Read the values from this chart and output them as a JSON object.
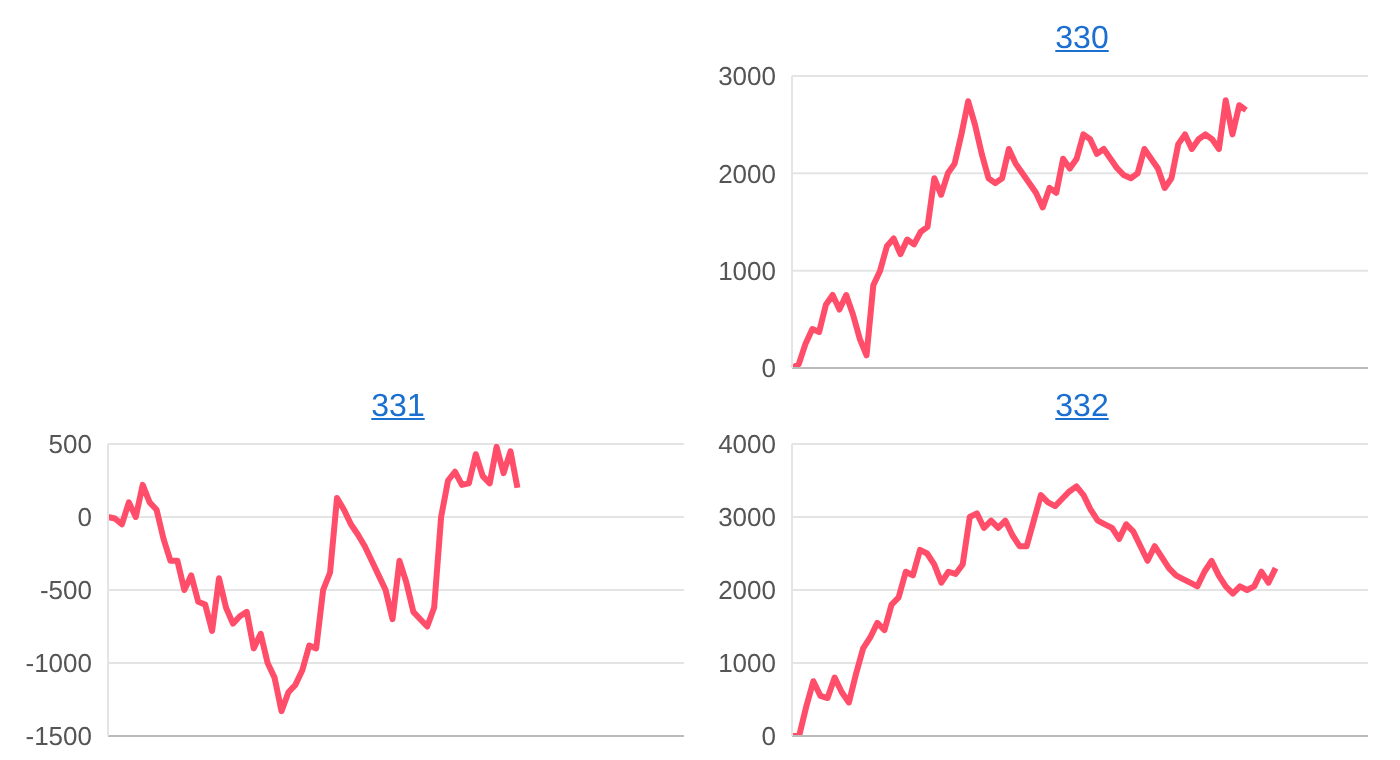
{
  "chart_data": [
    {
      "type": "line",
      "title": "330",
      "categories": [
        null,
        null,
        null,
        null,
        null,
        null,
        null,
        null,
        null,
        null,
        null,
        null,
        null,
        null,
        null,
        null,
        null,
        null,
        null,
        null,
        null,
        null,
        null,
        null,
        null,
        null,
        null,
        null,
        null,
        null,
        null,
        null,
        null,
        null,
        null,
        null,
        null,
        null,
        null,
        null,
        null,
        null,
        null,
        null,
        null,
        null,
        null,
        null,
        null,
        null,
        null,
        null,
        null,
        null,
        null,
        null,
        null,
        null,
        null,
        null,
        null,
        null,
        null,
        null,
        null,
        null,
        null,
        null,
        null,
        null,
        null,
        null,
        null,
        null,
        null,
        null,
        null,
        null,
        null,
        null,
        null,
        null,
        null,
        null,
        null,
        null
      ],
      "series": [
        {
          "color": "#ff4d6a",
          "values": [
            0,
            40,
            250,
            400,
            370,
            650,
            750,
            600,
            750,
            550,
            300,
            130,
            850,
            1000,
            1250,
            1330,
            1170,
            1320,
            1270,
            1400,
            1450,
            1950,
            1780,
            2000,
            2100,
            2400,
            2740,
            2500,
            2200,
            1950,
            1900,
            1950,
            2250,
            2100,
            2000,
            1900,
            1800,
            1650,
            1850,
            1800,
            2150,
            2050,
            2150,
            2400,
            2350,
            2200,
            2250,
            2150,
            2050,
            1980,
            1950,
            2000,
            2250,
            2150,
            2050,
            1850,
            1950,
            2300,
            2400,
            2250,
            2350,
            2400,
            2350,
            2250,
            2750,
            2400,
            2700,
            2650,
            null,
            null,
            null,
            null,
            null,
            null,
            null,
            null,
            null,
            null,
            null,
            null,
            null,
            null,
            null,
            null,
            null,
            null
          ]
        }
      ],
      "ylim": [
        0,
        3000
      ],
      "yticks": [
        0,
        1000,
        2000,
        3000
      ],
      "grid": "y",
      "tick_labels": "y"
    },
    {
      "type": "line",
      "title": "331",
      "categories": [
        null,
        null,
        null,
        null,
        null,
        null,
        null,
        null,
        null,
        null,
        null,
        null,
        null,
        null,
        null,
        null,
        null,
        null,
        null,
        null,
        null,
        null,
        null,
        null,
        null,
        null,
        null,
        null,
        null,
        null,
        null,
        null,
        null,
        null,
        null,
        null,
        null,
        null,
        null,
        null,
        null,
        null,
        null,
        null,
        null,
        null,
        null,
        null,
        null,
        null,
        null,
        null,
        null,
        null,
        null,
        null,
        null,
        null,
        null,
        null,
        null,
        null,
        null,
        null,
        null,
        null,
        null,
        null,
        null,
        null,
        null,
        null,
        null,
        null,
        null,
        null,
        null,
        null,
        null,
        null,
        null,
        null,
        null,
        null
      ],
      "series": [
        {
          "color": "#ff4d6a",
          "values": [
            0,
            -10,
            -50,
            100,
            0,
            220,
            100,
            50,
            -150,
            -300,
            -300,
            -500,
            -400,
            -580,
            -600,
            -780,
            -420,
            -620,
            -730,
            -680,
            -650,
            -900,
            -800,
            -1000,
            -1100,
            -1330,
            -1200,
            -1150,
            -1050,
            -880,
            -900,
            -500,
            -380,
            130,
            50,
            -50,
            -120,
            -200,
            -300,
            -400,
            -500,
            -700,
            -300,
            -450,
            -650,
            -700,
            -750,
            -620,
            0,
            250,
            310,
            220,
            230,
            430,
            280,
            230,
            480,
            300,
            450,
            200,
            null,
            null,
            null,
            null,
            null,
            null,
            null,
            null,
            null,
            null,
            null,
            null,
            null,
            null,
            null,
            null,
            null,
            null,
            null,
            null,
            null,
            null,
            null,
            null
          ]
        }
      ],
      "ylim": [
        -1500,
        500
      ],
      "yticks": [
        -1500,
        -1000,
        -500,
        0,
        500
      ],
      "grid": "y",
      "tick_labels": "y"
    },
    {
      "type": "line",
      "title": "332",
      "categories": [
        null,
        null,
        null,
        null,
        null,
        null,
        null,
        null,
        null,
        null,
        null,
        null,
        null,
        null,
        null,
        null,
        null,
        null,
        null,
        null,
        null,
        null,
        null,
        null,
        null,
        null,
        null,
        null,
        null,
        null,
        null,
        null,
        null,
        null,
        null,
        null,
        null,
        null,
        null,
        null,
        null,
        null,
        null,
        null,
        null,
        null,
        null,
        null,
        null,
        null,
        null,
        null,
        null,
        null,
        null,
        null,
        null,
        null,
        null,
        null,
        null,
        null,
        null,
        null,
        null,
        null,
        null,
        null,
        null,
        null,
        null,
        null,
        null,
        null,
        null,
        null,
        null,
        null,
        null,
        null,
        null,
        null
      ],
      "series": [
        {
          "color": "#ff4d6a",
          "values": [
            0,
            0,
            400,
            750,
            550,
            520,
            800,
            600,
            460,
            850,
            1200,
            1350,
            1550,
            1450,
            1800,
            1900,
            2250,
            2200,
            2550,
            2500,
            2350,
            2100,
            2250,
            2220,
            2350,
            3000,
            3050,
            2850,
            2950,
            2850,
            2950,
            2750,
            2600,
            2600,
            2950,
            3300,
            3200,
            3150,
            3250,
            3350,
            3420,
            3300,
            3100,
            2950,
            2900,
            2850,
            2700,
            2900,
            2800,
            2600,
            2400,
            2600,
            2450,
            2300,
            2200,
            2150,
            2100,
            2050,
            2250,
            2400,
            2200,
            2050,
            1950,
            2050,
            2000,
            2050,
            2250,
            2100,
            2300,
            null,
            null,
            null,
            null,
            null,
            null,
            null,
            null,
            null,
            null,
            null,
            null,
            null
          ]
        }
      ],
      "ylim": [
        0,
        4000
      ],
      "yticks": [
        0,
        1000,
        2000,
        3000,
        4000
      ],
      "grid": "y",
      "tick_labels": "y"
    }
  ]
}
